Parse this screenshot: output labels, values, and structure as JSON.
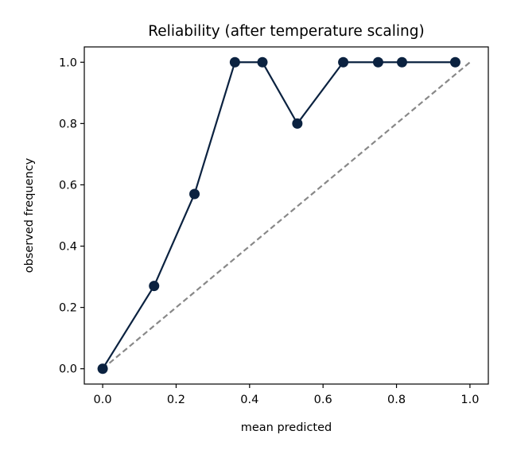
{
  "chart_data": {
    "type": "line",
    "title": "Reliability (after temperature scaling)",
    "xlabel": "mean predicted",
    "ylabel": "observed frequency",
    "xlim": [
      -0.05,
      1.05
    ],
    "ylim": [
      -0.05,
      1.05
    ],
    "xticks": [
      "0.0",
      "0.2",
      "0.4",
      "0.6",
      "0.8",
      "1.0"
    ],
    "yticks": [
      "0.0",
      "0.2",
      "0.4",
      "0.6",
      "0.8",
      "1.0"
    ],
    "grid": false,
    "series": [
      {
        "marker": "circle",
        "color": "#0b2240",
        "x": [
          0.0,
          0.14,
          0.25,
          0.36,
          0.435,
          0.53,
          0.655,
          0.75,
          0.815,
          0.96
        ],
        "y": [
          0.0,
          0.27,
          0.57,
          1.0,
          1.0,
          0.8,
          1.0,
          1.0,
          1.0,
          1.0
        ]
      }
    ],
    "reference_line": {
      "style": "dashed",
      "color": "#888888",
      "x": [
        0.0,
        1.0
      ],
      "y": [
        0.0,
        1.0
      ]
    }
  }
}
